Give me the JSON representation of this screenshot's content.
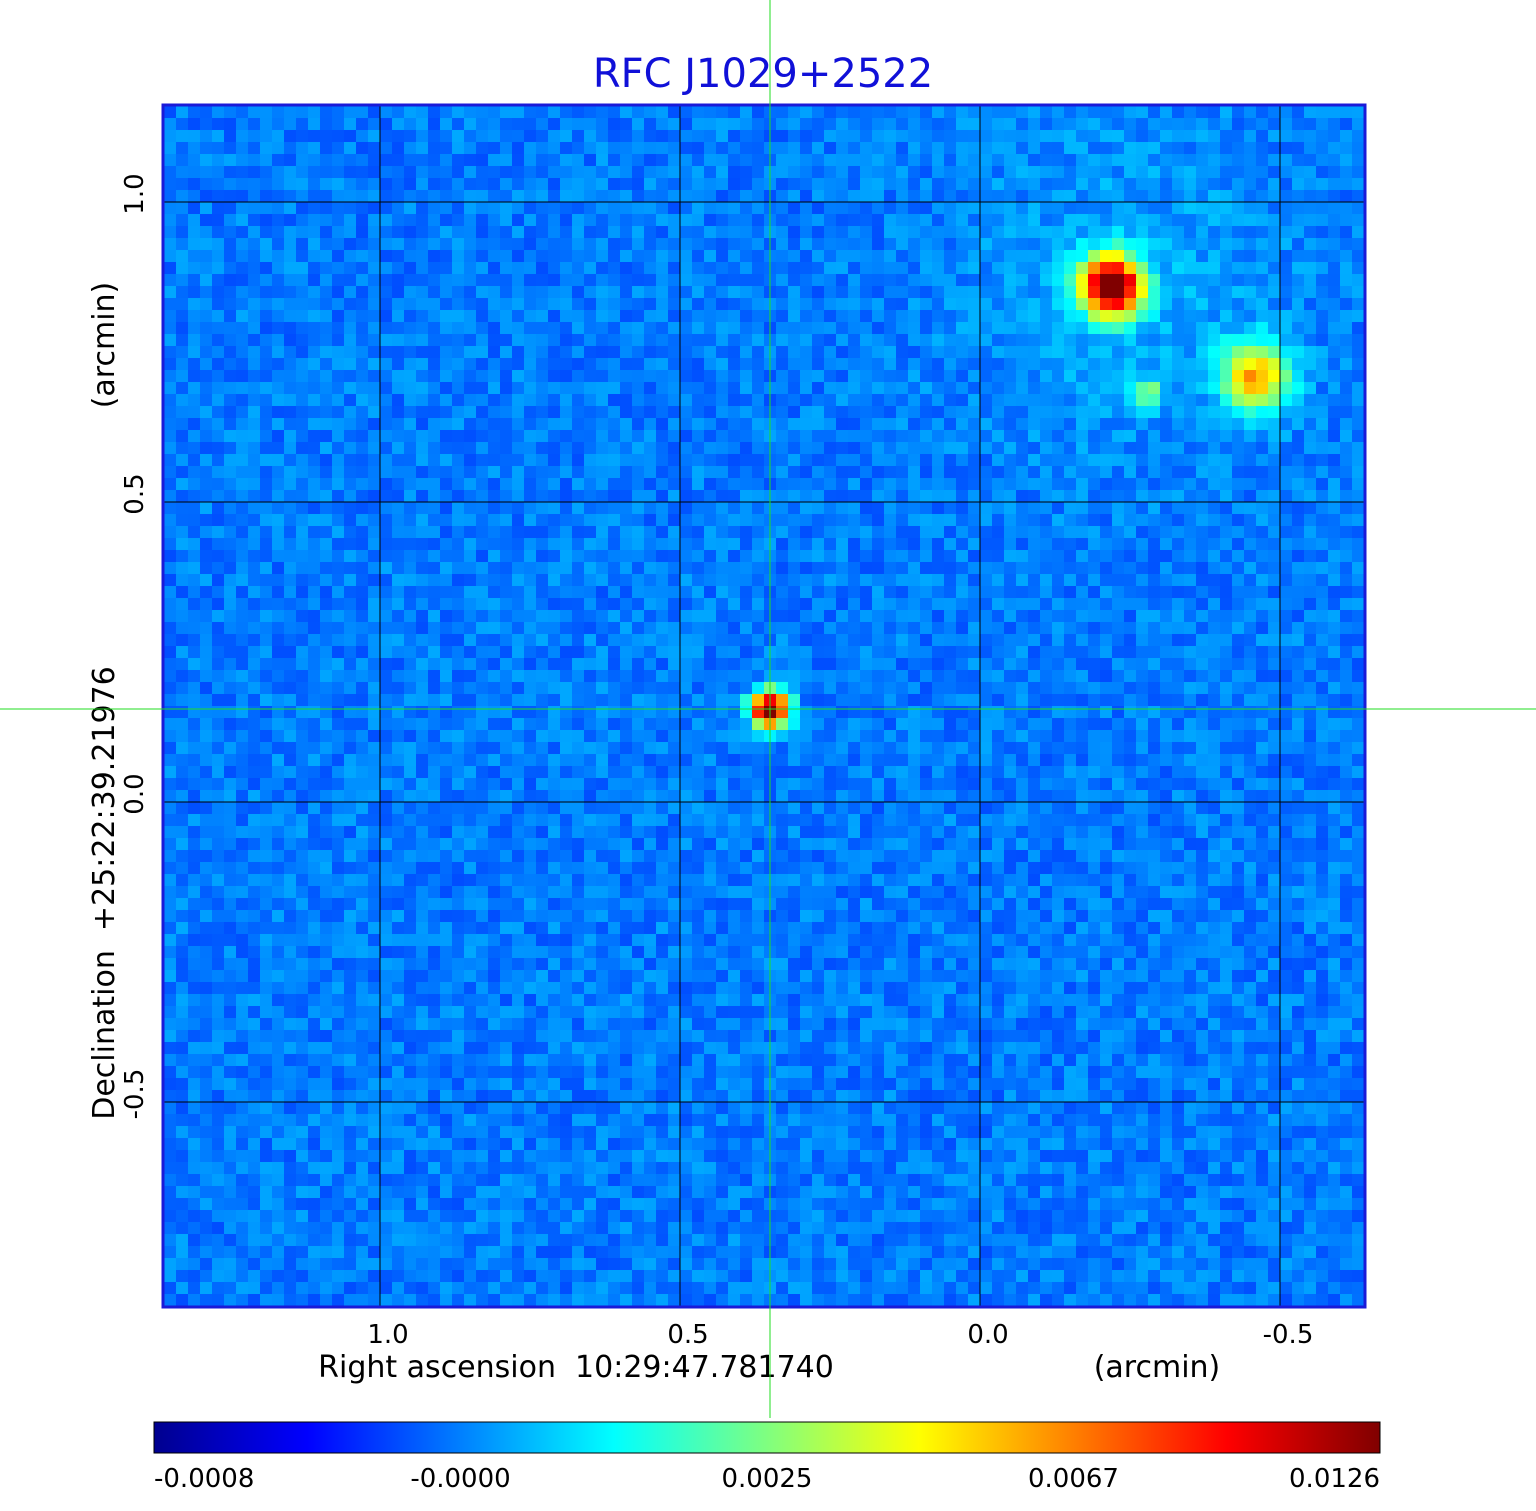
{
  "chart_data": {
    "type": "heatmap",
    "title": "RFC J1029+2522",
    "xlabel": "Right ascension  10:29:47.781740",
    "xunit": "(arcmin)",
    "ylabel": "Declination  +25:22:39.21976",
    "yunit": "(arcmin)",
    "xlim": [
      1.36,
      -0.64
    ],
    "ylim": [
      -0.84,
      1.16
    ],
    "x_ticks": [
      {
        "value": 1.0,
        "label": "1.0"
      },
      {
        "value": 0.5,
        "label": "0.5"
      },
      {
        "value": 0.0,
        "label": "0.0"
      },
      {
        "value": -0.5,
        "label": "-0.5"
      }
    ],
    "y_ticks": [
      {
        "value": 1.0,
        "label": "1.0"
      },
      {
        "value": 0.5,
        "label": "0.5"
      },
      {
        "value": 0.0,
        "label": "0.0"
      },
      {
        "value": -0.5,
        "label": "-0.5"
      }
    ],
    "grid": true,
    "crosshair": {
      "x": 0.35,
      "y": 0.155
    },
    "sources": [
      {
        "x": 0.35,
        "y": 0.155,
        "peak": 0.0126,
        "sigma": 0.022
      },
      {
        "x": -0.22,
        "y": 0.86,
        "peak": 0.0126,
        "sigma": 0.035
      },
      {
        "x": -0.46,
        "y": 0.71,
        "peak": 0.0068,
        "sigma": 0.04
      },
      {
        "x": -0.28,
        "y": 0.68,
        "peak": 0.0035,
        "sigma": 0.018
      }
    ],
    "colorbar": {
      "ticks": [
        "-0.0008",
        "-0.0000",
        "0.0025",
        "0.0067",
        "0.0126"
      ],
      "colors": [
        "#00008f",
        "#0000ff",
        "#00ffff",
        "#ffff00",
        "#ff0000",
        "#800000"
      ]
    },
    "colors": {
      "title": "#1010d8",
      "frame": "#1a1ad8",
      "crosshair": "#22dd22",
      "grid": "#000000"
    }
  }
}
